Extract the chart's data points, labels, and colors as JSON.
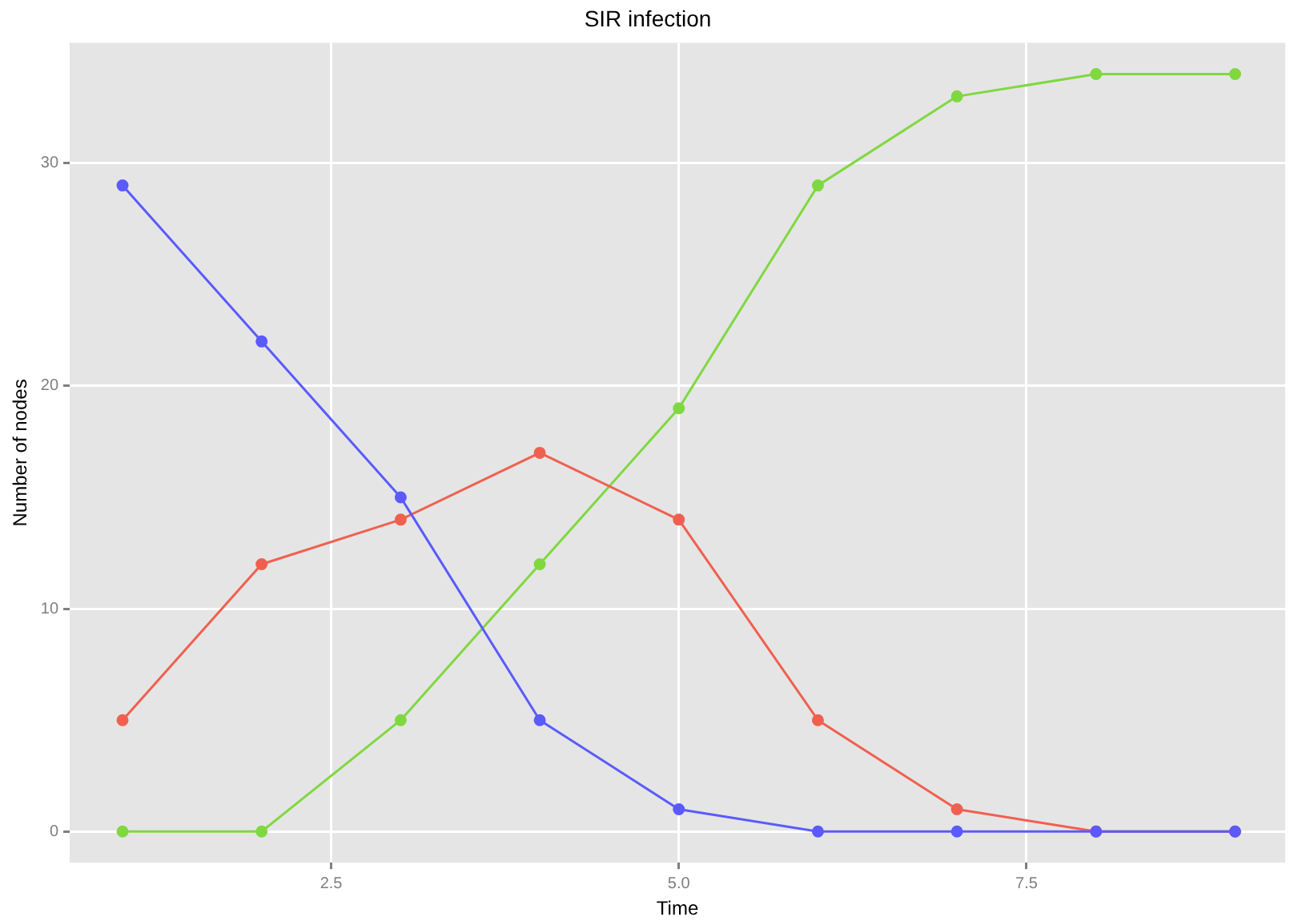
{
  "chart_data": {
    "type": "line",
    "title": "SIR infection",
    "xlabel": "Time",
    "ylabel": "Number of nodes",
    "x": [
      1,
      2,
      3,
      4,
      5,
      6,
      7,
      8,
      9
    ],
    "series": [
      {
        "color": "#5a5aff",
        "values": [
          29,
          22,
          15,
          5,
          1,
          0,
          0,
          0,
          0
        ]
      },
      {
        "color": "#f0604f",
        "values": [
          5,
          12,
          14,
          17,
          14,
          5,
          1,
          0,
          0
        ]
      },
      {
        "color": "#80d840",
        "values": [
          0,
          0,
          5,
          12,
          19,
          29,
          33,
          34,
          34
        ]
      }
    ],
    "xlim": [
      0.62,
      9.36
    ],
    "xticks": [
      {
        "value": 2.5,
        "label": "2.5"
      },
      {
        "value": 5,
        "label": "5.0"
      },
      {
        "value": 7.5,
        "label": "7.5"
      }
    ],
    "ylim": [
      -1.4,
      35.4
    ],
    "yticks": [
      0,
      10,
      20,
      30
    ],
    "grid": true,
    "legend": false,
    "marker": "circle",
    "line_style": "solid"
  }
}
